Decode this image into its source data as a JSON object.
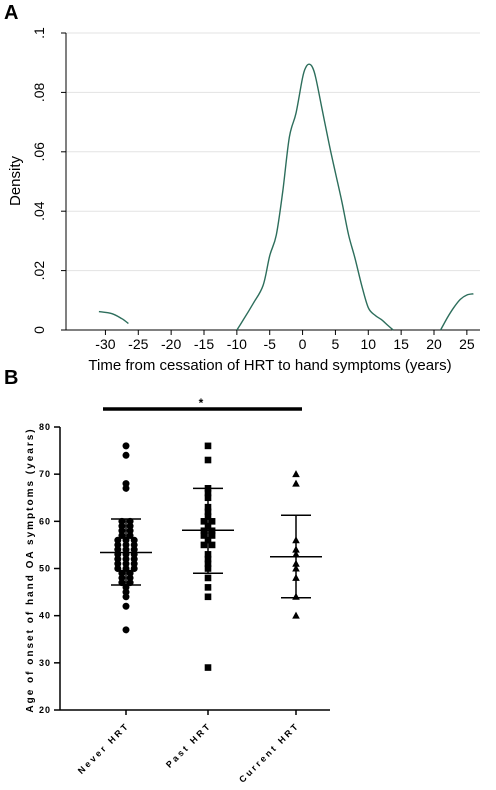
{
  "panels": {
    "a_label": "A",
    "b_label": "B"
  },
  "chart_data": [
    {
      "type": "line",
      "panel": "A",
      "title": "",
      "xlabel": "Time from cessation of HRT to hand symptoms (years)",
      "ylabel": "Density",
      "xlim": [
        -36,
        27
      ],
      "ylim": [
        0,
        0.1
      ],
      "xticks": [
        -30,
        -25,
        -20,
        -15,
        -10,
        -5,
        0,
        5,
        10,
        15,
        20,
        25
      ],
      "xtick_labels": [
        "-30",
        "-25",
        "-20",
        "-15",
        "-10",
        "-5",
        "0",
        "5",
        "10",
        "15",
        "20",
        "25"
      ],
      "yticks": [
        0,
        0.02,
        0.04,
        0.06,
        0.08,
        0.1
      ],
      "ytick_labels": [
        "0",
        ".02",
        ".04",
        ".06",
        ".08",
        ".1"
      ],
      "grid": true,
      "color": "#2d6e5c",
      "series": [
        {
          "x": [
            -31,
            -29,
            -27.5,
            -26.5
          ],
          "y": [
            0.0062,
            0.0055,
            0.0038,
            0.0022
          ]
        },
        {
          "x": [
            -10,
            -9,
            -7.5,
            -6,
            -5,
            -4,
            -3,
            -2,
            -1,
            0,
            0.5,
            1,
            1.5,
            2,
            3,
            4,
            5,
            6,
            7,
            8,
            9,
            10,
            11,
            12,
            13,
            13.8
          ],
          "y": [
            0,
            0.0035,
            0.009,
            0.015,
            0.025,
            0.032,
            0.047,
            0.065,
            0.073,
            0.085,
            0.0885,
            0.0895,
            0.0885,
            0.085,
            0.074,
            0.063,
            0.053,
            0.043,
            0.032,
            0.024,
            0.015,
            0.0075,
            0.005,
            0.0035,
            0.0015,
            0
          ]
        },
        {
          "x": [
            21,
            22,
            23,
            24,
            25,
            26
          ],
          "y": [
            0,
            0.004,
            0.0075,
            0.0103,
            0.0118,
            0.0122
          ]
        }
      ]
    },
    {
      "type": "scatter",
      "panel": "B",
      "title": "",
      "xlabel": "",
      "ylabel": "Age of onset of hand OA symptoms (years)",
      "ylim": [
        20,
        80
      ],
      "yticks": [
        20,
        30,
        40,
        50,
        60,
        70,
        80
      ],
      "ytick_labels": [
        "20",
        "30",
        "40",
        "50",
        "60",
        "70",
        "80"
      ],
      "categories": [
        "Never HRT",
        "Past HRT",
        "Current HRT"
      ],
      "significance": {
        "from": "Never HRT",
        "to": "Current HRT",
        "marker": "*"
      },
      "groups": [
        {
          "name": "Never HRT",
          "marker": "circle",
          "mean": 53.4,
          "sd_low": 46.5,
          "sd_high": 60.5,
          "values": [
            76,
            74,
            68,
            67,
            60,
            60,
            59,
            59,
            58,
            58,
            57,
            57,
            56,
            56,
            56,
            55,
            55,
            55,
            54,
            54,
            54,
            53,
            53,
            53,
            52,
            52,
            52,
            51,
            51,
            51,
            50,
            50,
            50,
            49,
            49,
            48,
            48,
            47,
            47,
            46,
            45,
            44,
            42,
            37
          ]
        },
        {
          "name": "Past HRT",
          "marker": "square",
          "mean": 58.1,
          "sd_low": 49.0,
          "sd_high": 67.0,
          "values": [
            76,
            73,
            67,
            66,
            65,
            63,
            62,
            61,
            60,
            60,
            59,
            58,
            58,
            57,
            57,
            56,
            55,
            55,
            53,
            52,
            51,
            50,
            48,
            46,
            44,
            29
          ]
        },
        {
          "name": "Current HRT",
          "marker": "triangle",
          "mean": 52.5,
          "sd_low": 43.8,
          "sd_high": 61.3,
          "values": [
            70,
            68,
            56,
            54,
            53,
            51,
            50,
            48,
            44,
            40
          ]
        }
      ]
    }
  ]
}
